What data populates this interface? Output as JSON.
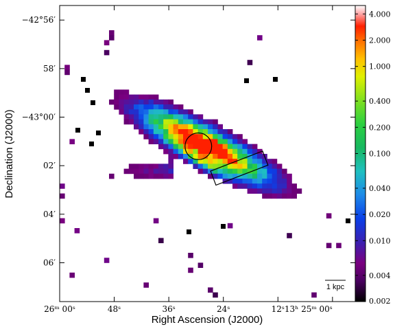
{
  "chart_data": {
    "type": "heatmap",
    "title": "",
    "xlabel": "Right Ascension (J2000)",
    "ylabel": "Declination (J2000)",
    "x_ticks": [
      {
        "label": "26ᵐ 00ˢ",
        "ra_s": 0
      },
      {
        "label": "48ˢ",
        "ra_s": 12
      },
      {
        "label": "36ˢ",
        "ra_s": 24
      },
      {
        "label": "24ˢ",
        "ra_s": 36
      },
      {
        "label": "12ˢ",
        "ra_s": 48
      },
      {
        "label": "13ʰ 25ᵐ 00ˢ",
        "ra_s": 60
      }
    ],
    "y_ticks": [
      {
        "label": "−42°56′",
        "dec_arcmin": -2576
      },
      {
        "label": "58′",
        "dec_arcmin": -2578
      },
      {
        "label": "−43°00′",
        "dec_arcmin": -2580
      },
      {
        "label": "02′",
        "dec_arcmin": -2582
      },
      {
        "label": "04′",
        "dec_arcmin": -2584
      },
      {
        "label": "06′",
        "dec_arcmin": -2586
      }
    ],
    "colorbar": {
      "scale": "log",
      "range": [
        0.002,
        5.0
      ],
      "tick_values": [
        4.0,
        2.0,
        1.0,
        0.4,
        0.2,
        0.1,
        0.04,
        0.02,
        0.01,
        0.004,
        0.002
      ],
      "tick_labels": [
        "4.000",
        "2.000",
        "1.000",
        "0.400",
        "0.200",
        "0.100",
        "0.040",
        "0.020",
        "0.010",
        "0.004",
        "0.002"
      ],
      "colormap": [
        "#000000",
        "#7a0080",
        "#3b1fb0",
        "#0a3fe8",
        "#1e8ae8",
        "#1fc0c0",
        "#18b860",
        "#2cd040",
        "#b0e020",
        "#f0f000",
        "#ffa000",
        "#ff2000",
        "#ffffff"
      ]
    },
    "overlays": {
      "circle": {
        "center_ra_s": 30.5,
        "center_dec_arcmin": -2581.2,
        "radius_arcmin": 0.55
      },
      "box": {
        "center_ra_s": 39.5,
        "center_dec_arcmin": -2582.1,
        "length_arcmin": 2.3,
        "width_arcmin": 0.62,
        "pa_deg": 57
      }
    },
    "scale_bar": {
      "label": "1 kpc"
    },
    "grid": false,
    "legend": "colorbar-right"
  }
}
